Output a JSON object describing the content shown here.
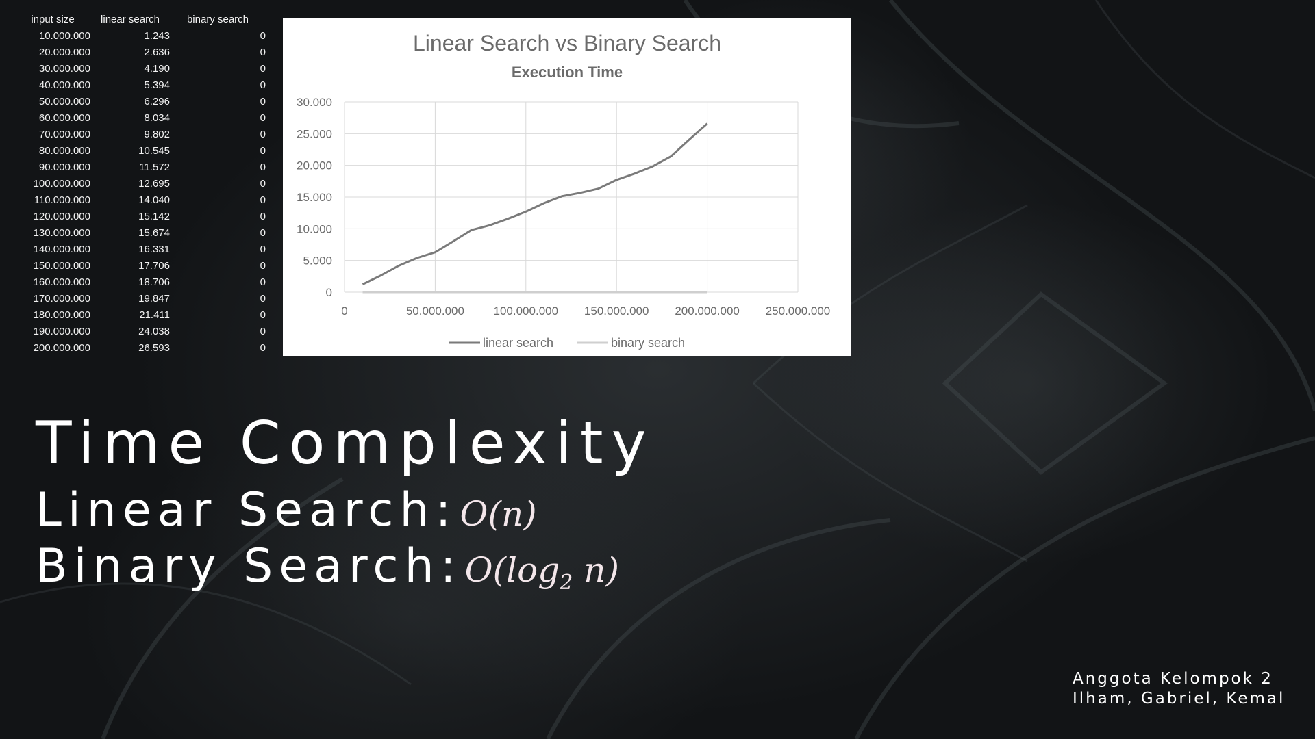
{
  "table": {
    "headers": [
      "input size",
      "linear search",
      "binary search"
    ],
    "rows": [
      [
        "10.000.000",
        "1.243",
        "0"
      ],
      [
        "20.000.000",
        "2.636",
        "0"
      ],
      [
        "30.000.000",
        "4.190",
        "0"
      ],
      [
        "40.000.000",
        "5.394",
        "0"
      ],
      [
        "50.000.000",
        "6.296",
        "0"
      ],
      [
        "60.000.000",
        "8.034",
        "0"
      ],
      [
        "70.000.000",
        "9.802",
        "0"
      ],
      [
        "80.000.000",
        "10.545",
        "0"
      ],
      [
        "90.000.000",
        "11.572",
        "0"
      ],
      [
        "100.000.000",
        "12.695",
        "0"
      ],
      [
        "110.000.000",
        "14.040",
        "0"
      ],
      [
        "120.000.000",
        "15.142",
        "0"
      ],
      [
        "130.000.000",
        "15.674",
        "0"
      ],
      [
        "140.000.000",
        "16.331",
        "0"
      ],
      [
        "150.000.000",
        "17.706",
        "0"
      ],
      [
        "160.000.000",
        "18.706",
        "0"
      ],
      [
        "170.000.000",
        "19.847",
        "0"
      ],
      [
        "180.000.000",
        "21.411",
        "0"
      ],
      [
        "190.000.000",
        "24.038",
        "0"
      ],
      [
        "200.000.000",
        "26.593",
        "0"
      ]
    ]
  },
  "chart_data": {
    "type": "line",
    "title": "Linear Search vs Binary Search",
    "subtitle": "Execution Time",
    "xlabel": "",
    "ylabel": "",
    "xlim": [
      0,
      250000000
    ],
    "ylim": [
      0,
      30000
    ],
    "x_ticks": [
      "0",
      "50.000.000",
      "100.000.000",
      "150.000.000",
      "200.000.000",
      "250.000.000"
    ],
    "y_ticks": [
      "0",
      "5.000",
      "10.000",
      "15.000",
      "20.000",
      "25.000",
      "30.000"
    ],
    "x": [
      10000000,
      20000000,
      30000000,
      40000000,
      50000000,
      60000000,
      70000000,
      80000000,
      90000000,
      100000000,
      110000000,
      120000000,
      130000000,
      140000000,
      150000000,
      160000000,
      170000000,
      180000000,
      190000000,
      200000000
    ],
    "series": [
      {
        "name": "linear search",
        "color": "#7a7a7a",
        "values": [
          1243,
          2636,
          4190,
          5394,
          6296,
          8034,
          9802,
          10545,
          11572,
          12695,
          14040,
          15142,
          15674,
          16331,
          17706,
          18706,
          19847,
          21411,
          24038,
          26593
        ]
      },
      {
        "name": "binary search",
        "color": "#cfcfcf",
        "values": [
          0,
          0,
          0,
          0,
          0,
          0,
          0,
          0,
          0,
          0,
          0,
          0,
          0,
          0,
          0,
          0,
          0,
          0,
          0,
          0
        ]
      }
    ],
    "grid": true,
    "legend": "bottom"
  },
  "slide": {
    "title": "Time Complexity",
    "linear_label": "Linear Search:",
    "linear_formula": "O(n)",
    "binary_label": "Binary Search:",
    "binary_formula_prefix": "O(log",
    "binary_formula_sub": "2",
    "binary_formula_suffix": " n)"
  },
  "members": {
    "heading": "Anggota Kelompok 2",
    "names": "Ilham, Gabriel, Kemal"
  }
}
